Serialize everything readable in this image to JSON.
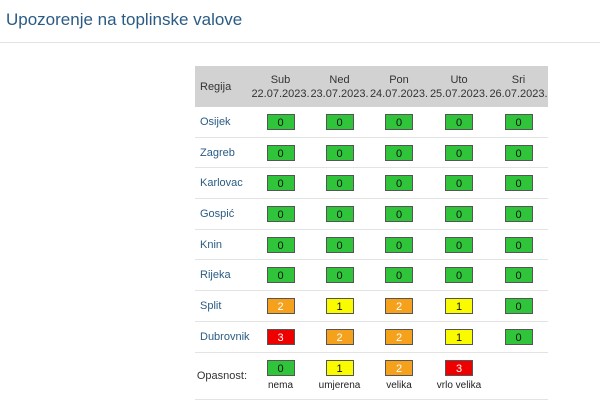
{
  "page": {
    "title": "Upozorenje na toplinske valove"
  },
  "table": {
    "region_header": "Regija",
    "days": [
      {
        "name": "Sub",
        "date": "22.07.2023."
      },
      {
        "name": "Ned",
        "date": "23.07.2023."
      },
      {
        "name": "Pon",
        "date": "24.07.2023."
      },
      {
        "name": "Uto",
        "date": "25.07.2023."
      },
      {
        "name": "Sri",
        "date": "26.07.2023."
      }
    ],
    "rows": [
      {
        "region": "Osijek",
        "levels": [
          "0",
          "0",
          "0",
          "0",
          "0"
        ]
      },
      {
        "region": "Zagreb",
        "levels": [
          "0",
          "0",
          "0",
          "0",
          "0"
        ]
      },
      {
        "region": "Karlovac",
        "levels": [
          "0",
          "0",
          "0",
          "0",
          "0"
        ]
      },
      {
        "region": "Gospić",
        "levels": [
          "0",
          "0",
          "0",
          "0",
          "0"
        ]
      },
      {
        "region": "Knin",
        "levels": [
          "0",
          "0",
          "0",
          "0",
          "0"
        ]
      },
      {
        "region": "Rijeka",
        "levels": [
          "0",
          "0",
          "0",
          "0",
          "0"
        ]
      },
      {
        "region": "Split",
        "levels": [
          "2",
          "1",
          "2",
          "1",
          "0"
        ]
      },
      {
        "region": "Dubrovnik",
        "levels": [
          "3",
          "2",
          "2",
          "1",
          "0"
        ]
      }
    ]
  },
  "legend": {
    "label": "Opasnost:",
    "items": [
      {
        "value": "0",
        "text": "nema"
      },
      {
        "value": "1",
        "text": "umjerena"
      },
      {
        "value": "2",
        "text": "velika"
      },
      {
        "value": "3",
        "text": "vrlo velika"
      }
    ]
  },
  "colors": {
    "level_0": "#2fc43a",
    "level_1": "#fbfb00",
    "level_2": "#f5a11c",
    "level_3": "#ee0000",
    "header_bg": "#d2d2d2",
    "title": "#2a5b84"
  }
}
